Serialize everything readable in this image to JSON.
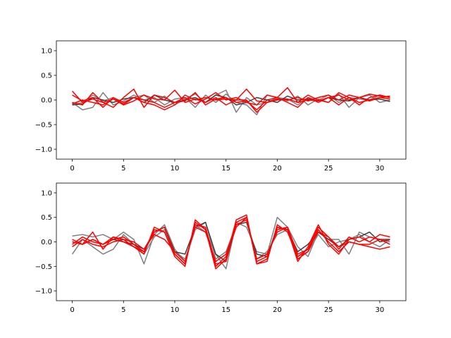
{
  "chart_data": [
    {
      "type": "line",
      "xlim": [
        -1.55,
        32.55
      ],
      "ylim": [
        -1.2,
        1.2
      ],
      "xticks": [
        0,
        5,
        10,
        15,
        20,
        25,
        30
      ],
      "yticks": [
        -1.0,
        -0.5,
        0.0,
        0.5,
        1.0
      ],
      "xtick_labels": [
        "0",
        "5",
        "10",
        "15",
        "20",
        "25",
        "30"
      ],
      "ytick_labels": [
        "−1.0",
        "−0.5",
        "0.0",
        "0.5",
        "1.0"
      ],
      "grid": false,
      "series": [
        {
          "color": "#7f7f7f",
          "values": [
            -0.1,
            -0.05,
            0.1,
            -0.02,
            0.05,
            -0.1,
            0.05,
            0.1,
            -0.05,
            0.08,
            -0.1,
            0.02,
            0.12,
            -0.05,
            0.1,
            0.2,
            -0.25,
            0.05,
            -0.1,
            -0.05,
            0.05,
            0.02,
            -0.1,
            0.05,
            0.0,
            0.1,
            -0.05,
            0.05,
            0.02,
            0.0,
            0.1,
            0.05
          ]
        },
        {
          "color": "#7f7f7f",
          "values": [
            -0.05,
            -0.2,
            -0.15,
            0.15,
            -0.1,
            -0.02,
            0.1,
            0.0,
            0.05,
            -0.1,
            0.02,
            0.05,
            -0.15,
            0.1,
            -0.05,
            0.12,
            -0.05,
            -0.1,
            -0.3,
            0.1,
            0.05,
            -0.02,
            0.08,
            -0.1,
            0.02,
            -0.05,
            0.12,
            -0.15,
            0.05,
            0.1,
            -0.05,
            0.0
          ]
        },
        {
          "color": "#3f3f3f",
          "values": [
            -0.1,
            -0.08,
            0.05,
            0.0,
            -0.05,
            0.02,
            0.05,
            -0.05,
            0.1,
            0.0,
            -0.05,
            0.0,
            0.05,
            -0.05,
            0.1,
            0.05,
            -0.1,
            -0.05,
            0.05,
            0.0,
            -0.05,
            0.08,
            0.0,
            0.02,
            -0.02,
            0.05,
            0.0,
            -0.02,
            0.05,
            0.0,
            0.02,
            -0.03
          ]
        },
        {
          "color": "#ff0000",
          "values": [
            0.18,
            -0.05,
            0.02,
            -0.05,
            -0.15,
            0.05,
            0.22,
            -0.15,
            0.1,
            0.05,
            -0.05,
            0.05,
            -0.08,
            0.02,
            0.15,
            0.0,
            0.05,
            -0.05,
            -0.1,
            0.1,
            0.05,
            0.25,
            -0.05,
            0.1,
            0.0,
            -0.05,
            0.15,
            0.05,
            -0.1,
            0.05,
            0.1,
            0.05
          ]
        },
        {
          "color": "#ff0000",
          "values": [
            -0.05,
            -0.1,
            0.15,
            -0.05,
            0.02,
            -0.1,
            -0.02,
            0.1,
            0.02,
            0.0,
            0.2,
            -0.05,
            0.02,
            -0.05,
            0.05,
            -0.1,
            0.0,
            0.22,
            -0.02,
            -0.05,
            0.0,
            0.02,
            -0.05,
            0.0,
            -0.02,
            0.05,
            0.1,
            0.0,
            0.05,
            -0.02,
            0.05,
            0.08
          ]
        },
        {
          "color": "#ff0000",
          "values": [
            0.1,
            -0.02,
            0.05,
            -0.15,
            0.05,
            -0.05,
            0.05,
            0.0,
            -0.05,
            -0.15,
            -0.05,
            -0.02,
            0.15,
            -0.1,
            0.02,
            0.05,
            -0.05,
            -0.02,
            -0.2,
            0.0,
            0.05,
            -0.05,
            -0.15,
            0.05,
            -0.05,
            0.05,
            -0.1,
            0.05,
            -0.05,
            0.0,
            0.05,
            0.02
          ]
        },
        {
          "color": "#ff0000",
          "values": [
            -0.08,
            0.0,
            -0.05,
            -0.1,
            0.02,
            -0.08,
            0.05,
            -0.05,
            -0.1,
            -0.2,
            -0.1,
            0.1,
            0.0,
            0.05,
            0.0,
            0.02,
            0.0,
            0.0,
            -0.25,
            -0.05,
            0.02,
            0.0,
            0.05,
            -0.02,
            0.05,
            0.1,
            0.0,
            0.1,
            0.05,
            0.12,
            0.08,
            0.05
          ]
        }
      ]
    },
    {
      "type": "line",
      "xlim": [
        -1.55,
        32.55
      ],
      "ylim": [
        -1.2,
        1.2
      ],
      "xticks": [
        0,
        5,
        10,
        15,
        20,
        25,
        30
      ],
      "yticks": [
        -1.0,
        -0.5,
        0.0,
        0.5,
        1.0
      ],
      "xtick_labels": [
        "0",
        "5",
        "10",
        "15",
        "20",
        "25",
        "30"
      ],
      "ytick_labels": [
        "−1.0",
        "−0.5",
        "0.0",
        "0.5",
        "1.0"
      ],
      "grid": false,
      "series": [
        {
          "color": "#7f7f7f",
          "values": [
            0.12,
            0.15,
            0.1,
            0.15,
            0.05,
            0.2,
            0.05,
            -0.45,
            0.15,
            0.35,
            -0.15,
            -0.4,
            0.35,
            0.2,
            -0.25,
            -0.55,
            0.4,
            0.3,
            -0.2,
            -0.25,
            0.5,
            0.3,
            -0.1,
            -0.3,
            0.2,
            0.05,
            0.05,
            -0.25,
            0.2,
            0.1,
            0.05,
            0.0
          ]
        },
        {
          "color": "#7f7f7f",
          "values": [
            -0.25,
            0.05,
            -0.1,
            -0.25,
            -0.15,
            0.15,
            -0.05,
            -0.25,
            0.1,
            0.25,
            -0.2,
            -0.35,
            0.25,
            0.4,
            -0.35,
            -0.2,
            0.35,
            0.45,
            -0.35,
            -0.2,
            0.15,
            0.25,
            -0.3,
            -0.2,
            0.15,
            -0.1,
            0.0,
            0.05,
            0.15,
            0.0,
            -0.1,
            0.05
          ]
        },
        {
          "color": "#3f3f3f",
          "values": [
            0.0,
            -0.05,
            0.05,
            -0.05,
            0.05,
            0.0,
            -0.05,
            -0.15,
            0.2,
            0.3,
            -0.2,
            -0.25,
            0.3,
            0.4,
            -0.25,
            -0.4,
            0.35,
            0.4,
            -0.25,
            -0.3,
            0.3,
            0.25,
            -0.2,
            -0.05,
            0.2,
            0.05,
            -0.1,
            0.05,
            0.1,
            0.2,
            0.0,
            0.05
          ]
        },
        {
          "color": "#ff0000",
          "values": [
            0.05,
            -0.05,
            0.2,
            -0.15,
            0.1,
            0.0,
            -0.1,
            -0.25,
            0.3,
            0.2,
            -0.3,
            -0.5,
            0.45,
            0.25,
            -0.55,
            -0.35,
            0.45,
            0.55,
            -0.45,
            -0.35,
            0.3,
            0.25,
            -0.4,
            -0.1,
            0.35,
            -0.05,
            -0.25,
            0.05,
            0.1,
            0.0,
            0.15,
            0.1
          ]
        },
        {
          "color": "#ff0000",
          "values": [
            -0.05,
            0.1,
            0.0,
            -0.05,
            0.1,
            0.05,
            -0.1,
            -0.2,
            0.2,
            0.3,
            -0.25,
            -0.45,
            0.35,
            0.3,
            -0.45,
            -0.4,
            0.4,
            0.5,
            -0.4,
            -0.3,
            0.25,
            0.3,
            -0.35,
            -0.2,
            0.25,
            0.0,
            -0.2,
            0.0,
            -0.05,
            -0.1,
            -0.15,
            -0.1
          ]
        },
        {
          "color": "#ff0000",
          "values": [
            -0.1,
            0.05,
            -0.05,
            -0.1,
            0.0,
            0.05,
            0.0,
            -0.15,
            0.15,
            0.05,
            -0.2,
            -0.4,
            0.3,
            0.2,
            -0.4,
            -0.25,
            0.35,
            0.45,
            -0.35,
            -0.25,
            0.2,
            0.3,
            -0.25,
            -0.15,
            0.2,
            0.1,
            -0.1,
            0.0,
            -0.05,
            -0.05,
            0.05,
            -0.05
          ]
        },
        {
          "color": "#ff0000",
          "values": [
            0.0,
            -0.05,
            0.05,
            -0.05,
            0.05,
            0.1,
            -0.05,
            -0.2,
            0.25,
            0.2,
            -0.25,
            -0.45,
            0.4,
            0.25,
            -0.5,
            -0.3,
            0.3,
            0.5,
            -0.45,
            -0.4,
            0.35,
            0.2,
            -0.3,
            -0.15,
            0.3,
            0.1,
            -0.15,
            0.1,
            0.0,
            0.1,
            0.05,
            0.05
          ]
        }
      ]
    }
  ]
}
